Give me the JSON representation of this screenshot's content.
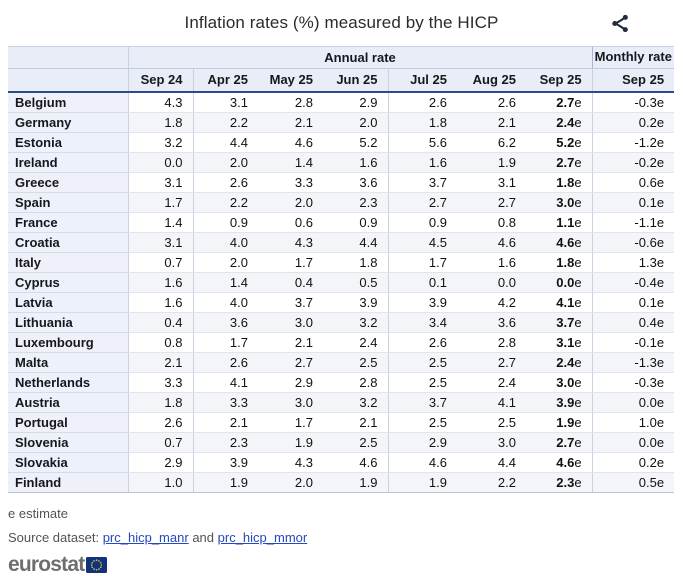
{
  "header": {
    "title": "Inflation rates (%) measured by the HICP",
    "share_icon": "share-icon"
  },
  "table": {
    "group_headers": {
      "annual": "Annual rate",
      "monthly": "Monthly rate"
    },
    "annual_columns": [
      "Sep 24",
      "Apr 25",
      "May 25",
      "Jun 25",
      "Jul 25",
      "Aug 25",
      "Sep 25"
    ],
    "monthly_column": "Sep 25",
    "estimate_suffix": "e",
    "rows": [
      {
        "country": "Belgium",
        "annual": [
          "4.3",
          "3.1",
          "2.8",
          "2.9",
          "2.6",
          "2.6"
        ],
        "annual_estimate": "2.7",
        "monthly_estimate": "-0.3"
      },
      {
        "country": "Germany",
        "annual": [
          "1.8",
          "2.2",
          "2.1",
          "2.0",
          "1.8",
          "2.1"
        ],
        "annual_estimate": "2.4",
        "monthly_estimate": "0.2"
      },
      {
        "country": "Estonia",
        "annual": [
          "3.2",
          "4.4",
          "4.6",
          "5.2",
          "5.6",
          "6.2"
        ],
        "annual_estimate": "5.2",
        "monthly_estimate": "-1.2"
      },
      {
        "country": "Ireland",
        "annual": [
          "0.0",
          "2.0",
          "1.4",
          "1.6",
          "1.6",
          "1.9"
        ],
        "annual_estimate": "2.7",
        "monthly_estimate": "-0.2"
      },
      {
        "country": "Greece",
        "annual": [
          "3.1",
          "2.6",
          "3.3",
          "3.6",
          "3.7",
          "3.1"
        ],
        "annual_estimate": "1.8",
        "monthly_estimate": "0.6"
      },
      {
        "country": "Spain",
        "annual": [
          "1.7",
          "2.2",
          "2.0",
          "2.3",
          "2.7",
          "2.7"
        ],
        "annual_estimate": "3.0",
        "monthly_estimate": "0.1"
      },
      {
        "country": "France",
        "annual": [
          "1.4",
          "0.9",
          "0.6",
          "0.9",
          "0.9",
          "0.8"
        ],
        "annual_estimate": "1.1",
        "monthly_estimate": "-1.1"
      },
      {
        "country": "Croatia",
        "annual": [
          "3.1",
          "4.0",
          "4.3",
          "4.4",
          "4.5",
          "4.6"
        ],
        "annual_estimate": "4.6",
        "monthly_estimate": "-0.6"
      },
      {
        "country": "Italy",
        "annual": [
          "0.7",
          "2.0",
          "1.7",
          "1.8",
          "1.7",
          "1.6"
        ],
        "annual_estimate": "1.8",
        "monthly_estimate": "1.3"
      },
      {
        "country": "Cyprus",
        "annual": [
          "1.6",
          "1.4",
          "0.4",
          "0.5",
          "0.1",
          "0.0"
        ],
        "annual_estimate": "0.0",
        "monthly_estimate": "-0.4"
      },
      {
        "country": "Latvia",
        "annual": [
          "1.6",
          "4.0",
          "3.7",
          "3.9",
          "3.9",
          "4.2"
        ],
        "annual_estimate": "4.1",
        "monthly_estimate": "0.1"
      },
      {
        "country": "Lithuania",
        "annual": [
          "0.4",
          "3.6",
          "3.0",
          "3.2",
          "3.4",
          "3.6"
        ],
        "annual_estimate": "3.7",
        "monthly_estimate": "0.4"
      },
      {
        "country": "Luxembourg",
        "annual": [
          "0.8",
          "1.7",
          "2.1",
          "2.4",
          "2.6",
          "2.8"
        ],
        "annual_estimate": "3.1",
        "monthly_estimate": "-0.1"
      },
      {
        "country": "Malta",
        "annual": [
          "2.1",
          "2.6",
          "2.7",
          "2.5",
          "2.5",
          "2.7"
        ],
        "annual_estimate": "2.4",
        "monthly_estimate": "-1.3"
      },
      {
        "country": "Netherlands",
        "annual": [
          "3.3",
          "4.1",
          "2.9",
          "2.8",
          "2.5",
          "2.4"
        ],
        "annual_estimate": "3.0",
        "monthly_estimate": "-0.3"
      },
      {
        "country": "Austria",
        "annual": [
          "1.8",
          "3.3",
          "3.0",
          "3.2",
          "3.7",
          "4.1"
        ],
        "annual_estimate": "3.9",
        "monthly_estimate": "0.0"
      },
      {
        "country": "Portugal",
        "annual": [
          "2.6",
          "2.1",
          "1.7",
          "2.1",
          "2.5",
          "2.5"
        ],
        "annual_estimate": "1.9",
        "monthly_estimate": "1.0"
      },
      {
        "country": "Slovenia",
        "annual": [
          "0.7",
          "2.3",
          "1.9",
          "2.5",
          "2.9",
          "3.0"
        ],
        "annual_estimate": "2.7",
        "monthly_estimate": "0.0"
      },
      {
        "country": "Slovakia",
        "annual": [
          "2.9",
          "3.9",
          "4.3",
          "4.6",
          "4.6",
          "4.4"
        ],
        "annual_estimate": "4.6",
        "monthly_estimate": "0.2"
      },
      {
        "country": "Finland",
        "annual": [
          "1.0",
          "1.9",
          "2.0",
          "1.9",
          "1.9",
          "2.2"
        ],
        "annual_estimate": "2.3",
        "monthly_estimate": "0.5"
      }
    ]
  },
  "footer": {
    "estimate_note": "e estimate",
    "source_label": "Source dataset:",
    "source_link_1": "prc_hicp_manr",
    "source_conjunction": "and",
    "source_link_2": "prc_hicp_mmor",
    "logo_text": "eurostat",
    "eu_flag_icon": "eu-flag-icon"
  },
  "colors": {
    "header_bg": "#e9edf7",
    "country_col_bg": "#eef1f9",
    "alt_row_bg": "#f4f5f8",
    "dark_header_border": "#2d4b89",
    "light_border": "#c9d2e4",
    "row_border": "#e0e4ee",
    "link_blue": "#2449c0",
    "eu_flag_blue": "#11337c",
    "eu_star_yellow": "#f0c93f",
    "logo_gray": "#6d6e70",
    "share_icon_color": "#232c3a",
    "text": "#111111"
  }
}
